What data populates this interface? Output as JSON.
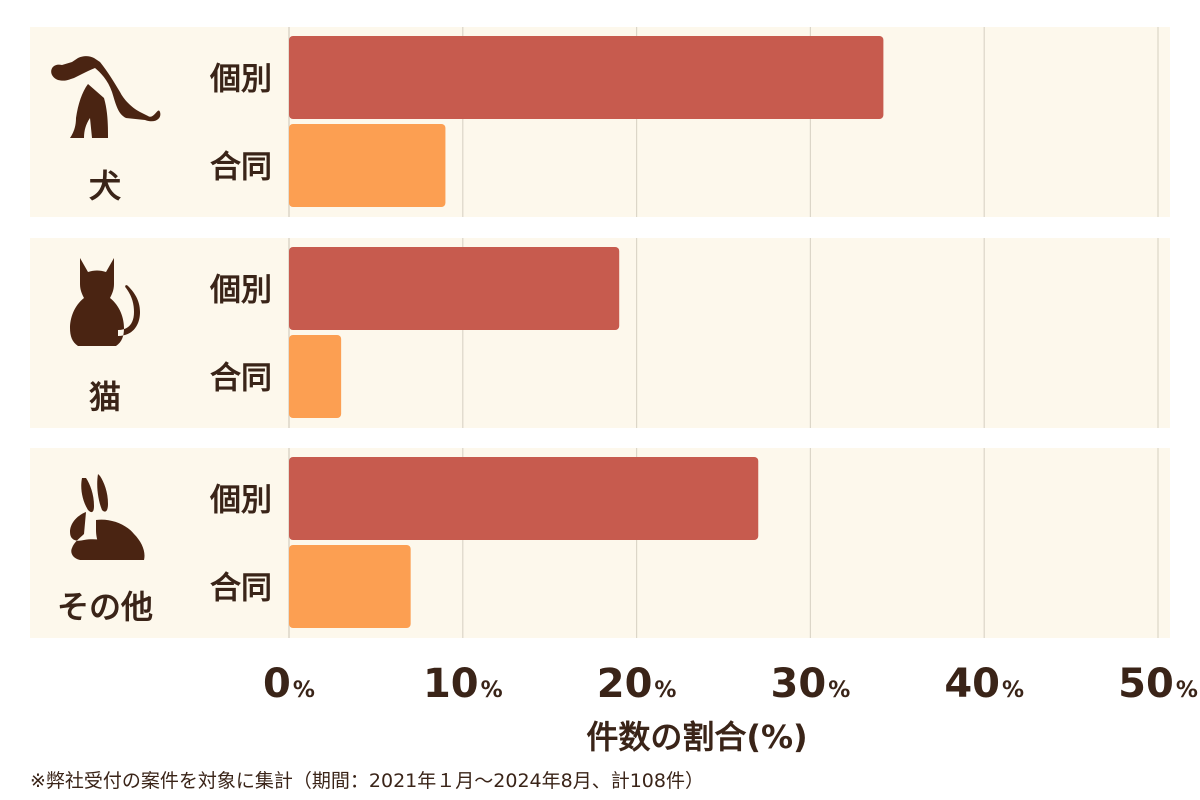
{
  "chart_data": {
    "type": "bar",
    "orientation": "horizontal",
    "groups": [
      {
        "label": "犬",
        "icon": "dog-icon",
        "bars": [
          {
            "name": "個別",
            "value": 34.2
          },
          {
            "name": "合同",
            "value": 9.0
          }
        ]
      },
      {
        "label": "猫",
        "icon": "cat-icon",
        "bars": [
          {
            "name": "個別",
            "value": 19.0
          },
          {
            "name": "合同",
            "value": 3.0
          }
        ]
      },
      {
        "label": "その他",
        "icon": "rabbit-icon",
        "bars": [
          {
            "name": "個別",
            "value": 27.0
          },
          {
            "name": "合同",
            "value": 7.0
          }
        ]
      }
    ],
    "xlim": [
      0,
      50
    ],
    "xticks": [
      {
        "value": 0,
        "num": "0",
        "unit": "%"
      },
      {
        "value": 10,
        "num": "10",
        "unit": "%"
      },
      {
        "value": 20,
        "num": "20",
        "unit": "%"
      },
      {
        "value": 30,
        "num": "30",
        "unit": "%"
      },
      {
        "value": 40,
        "num": "40",
        "unit": "%"
      },
      {
        "value": 50,
        "num": "50",
        "unit": "%"
      }
    ],
    "xlabel": "件数の割合(%)",
    "grid": true,
    "colors": {
      "個別": "#c75b4e",
      "合同": "#fc9f52",
      "panel": "#fdf8ec",
      "grid": "#dcd6c8",
      "text": "#3a2418",
      "icon": "#4a2412"
    }
  },
  "footnote": "※弊社受付の案件を対象に集計（期間：2021年１月〜2024年8月、計108件）"
}
